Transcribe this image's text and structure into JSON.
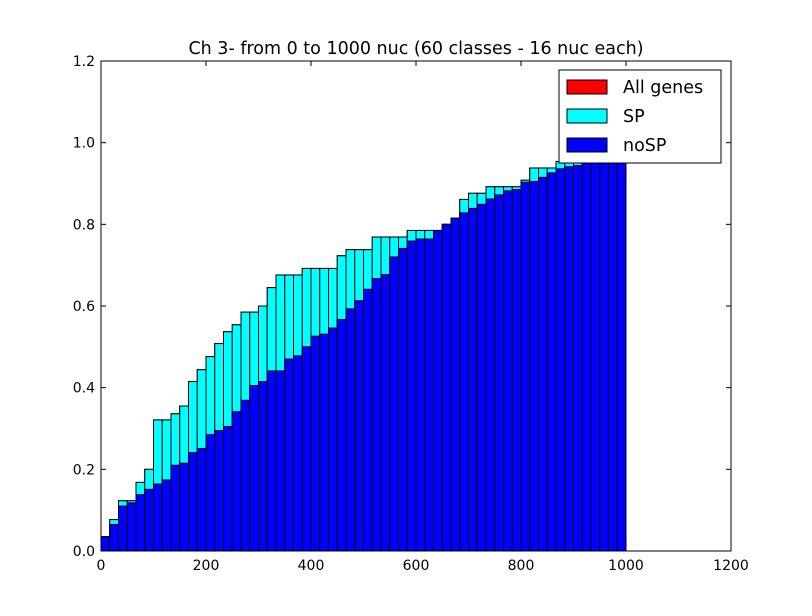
{
  "chart_data": {
    "type": "bar",
    "title": "Ch 3- from 0 to 1000 nuc (60 classes - 16 nuc each)",
    "xlabel": "",
    "ylabel": "",
    "xlim": [
      0,
      1200
    ],
    "ylim": [
      0,
      1.2
    ],
    "xticks": [
      "0",
      "200",
      "400",
      "600",
      "800",
      "1000",
      "1200"
    ],
    "yticks": [
      "0.0",
      "0.2",
      "0.4",
      "0.6",
      "0.8",
      "1.0",
      "1.2"
    ],
    "legend_position": "top-right",
    "bin_width": 16.667,
    "x": [
      0,
      16.67,
      33.33,
      50,
      66.67,
      83.33,
      100,
      116.67,
      133.33,
      150,
      166.67,
      183.33,
      200,
      216.67,
      233.33,
      250,
      266.67,
      283.33,
      300,
      316.67,
      333.33,
      350,
      366.67,
      383.33,
      400,
      416.67,
      433.33,
      450,
      466.67,
      483.33,
      500,
      516.67,
      533.33,
      550,
      566.67,
      583.33,
      600,
      616.67,
      633.33,
      650,
      666.67,
      683.33,
      700,
      716.67,
      733.33,
      750,
      766.67,
      783.33,
      800,
      816.67,
      833.33,
      850,
      866.67,
      883.33,
      900,
      916.67,
      933.33,
      950,
      966.67,
      983.33
    ],
    "series": [
      {
        "name": "All genes",
        "color": "#ff0000",
        "values": [
          0.035,
          0.077,
          0.123,
          0.123,
          0.168,
          0.2,
          0.321,
          0.321,
          0.336,
          0.355,
          0.415,
          0.444,
          0.476,
          0.508,
          0.537,
          0.554,
          0.585,
          0.585,
          0.6,
          0.645,
          0.676,
          0.676,
          0.676,
          0.692,
          0.692,
          0.692,
          0.692,
          0.723,
          0.738,
          0.738,
          0.738,
          0.769,
          0.769,
          0.769,
          0.769,
          0.785,
          0.785,
          0.785,
          0.785,
          0.8,
          0.815,
          0.861,
          0.876,
          0.876,
          0.892,
          0.892,
          0.892,
          0.892,
          0.908,
          0.938,
          0.938,
          0.938,
          0.954,
          0.954,
          0.969,
          0.969,
          0.985,
          0.985,
          1.0,
          1.0
        ]
      },
      {
        "name": "SP",
        "color": "#00ffff",
        "values": [
          0.035,
          0.077,
          0.123,
          0.123,
          0.168,
          0.2,
          0.321,
          0.321,
          0.336,
          0.355,
          0.415,
          0.444,
          0.476,
          0.508,
          0.537,
          0.554,
          0.585,
          0.585,
          0.6,
          0.645,
          0.676,
          0.676,
          0.676,
          0.692,
          0.692,
          0.692,
          0.692,
          0.723,
          0.738,
          0.738,
          0.738,
          0.769,
          0.769,
          0.769,
          0.769,
          0.785,
          0.785,
          0.785,
          0.785,
          0.8,
          0.815,
          0.861,
          0.876,
          0.876,
          0.892,
          0.892,
          0.892,
          0.892,
          0.908,
          0.938,
          0.938,
          0.938,
          0.954,
          0.954,
          0.969,
          0.969,
          0.985,
          0.985,
          1.0,
          1.0
        ]
      },
      {
        "name": "noSP",
        "color": "#0000ff",
        "values": [
          0.035,
          0.065,
          0.11,
          0.118,
          0.138,
          0.151,
          0.164,
          0.174,
          0.21,
          0.215,
          0.241,
          0.251,
          0.285,
          0.295,
          0.305,
          0.341,
          0.369,
          0.405,
          0.415,
          0.441,
          0.441,
          0.47,
          0.478,
          0.5,
          0.526,
          0.531,
          0.546,
          0.567,
          0.593,
          0.613,
          0.641,
          0.667,
          0.677,
          0.72,
          0.741,
          0.759,
          0.764,
          0.764,
          0.785,
          0.8,
          0.815,
          0.828,
          0.839,
          0.849,
          0.862,
          0.872,
          0.882,
          0.885,
          0.903,
          0.905,
          0.915,
          0.926,
          0.936,
          0.941,
          0.944,
          0.954,
          0.964,
          0.969,
          0.985,
          1.0
        ]
      }
    ]
  }
}
